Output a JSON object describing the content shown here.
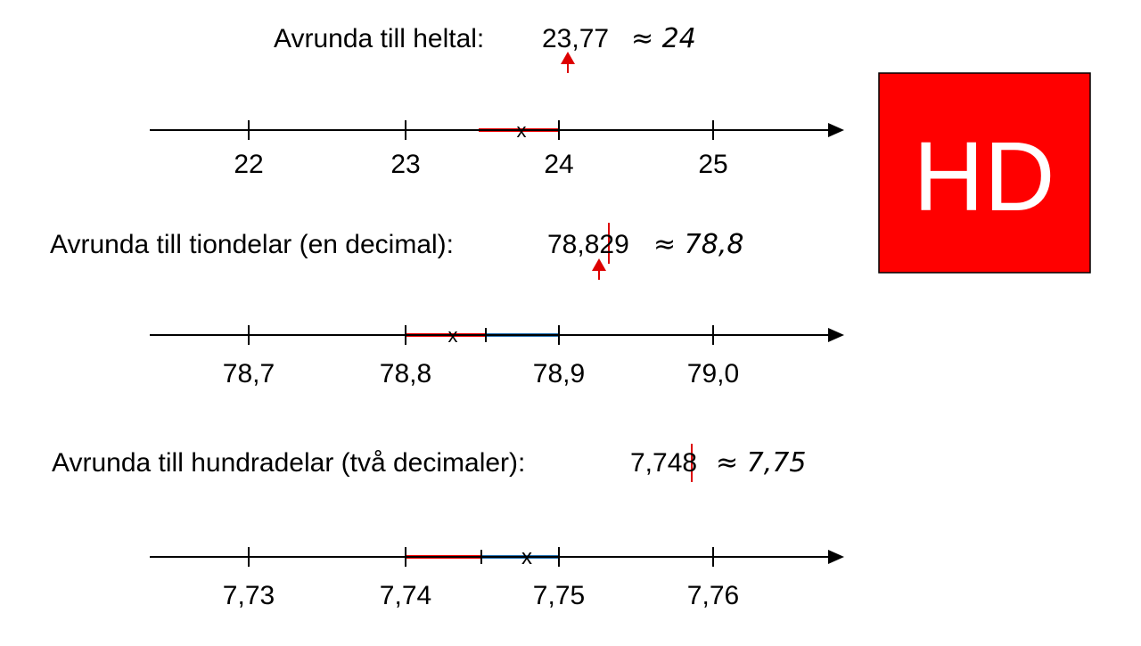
{
  "sections": [
    {
      "label": "Avrunda till heltal:",
      "number": "23,77",
      "result": "≈ 24",
      "ticks": [
        "22",
        "23",
        "24",
        "25"
      ]
    },
    {
      "label": "Avrunda till tiondelar (en decimal):",
      "number": "78,829",
      "result": "≈ 78,8",
      "ticks": [
        "78,7",
        "78,8",
        "78,9",
        "79,0"
      ]
    },
    {
      "label": "Avrunda till hundradelar (två decimaler):",
      "number": "7,748",
      "result": "≈ 7,75",
      "ticks": [
        "7,73",
        "7,74",
        "7,75",
        "7,76"
      ]
    }
  ],
  "badge": "HD"
}
